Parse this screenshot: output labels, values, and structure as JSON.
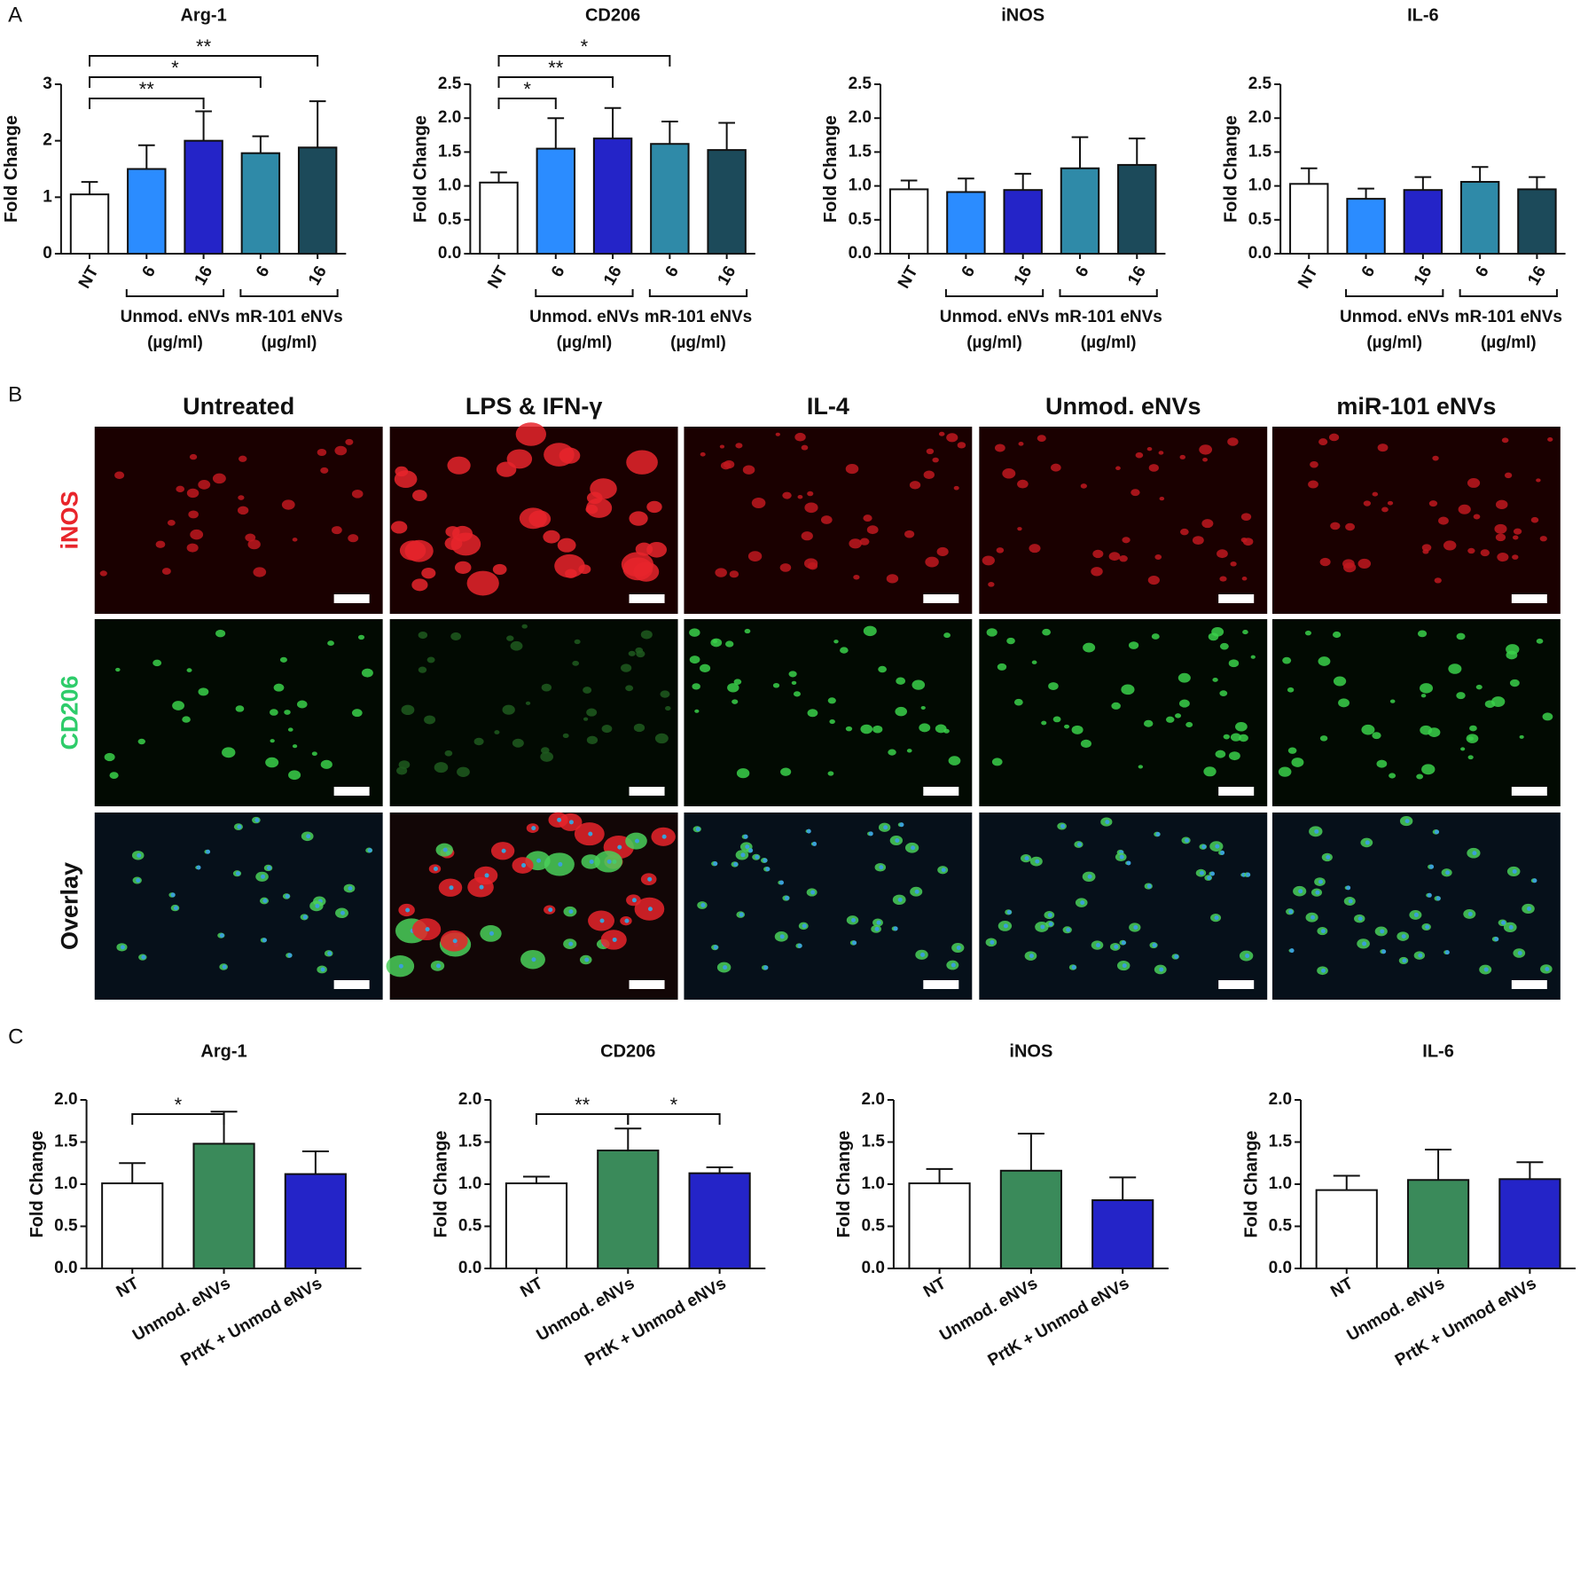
{
  "panel_labels": [
    "A",
    "B",
    "C"
  ],
  "chart_data": [
    {
      "type": "bar",
      "title": "Arg-1",
      "y_label": "Fold Change",
      "categories": [
        "NT",
        "6",
        "16",
        "6",
        "16"
      ],
      "values": [
        1.05,
        1.5,
        2.0,
        1.78,
        1.88
      ],
      "errors": [
        0.22,
        0.42,
        0.52,
        0.3,
        0.82
      ],
      "colors": [
        "#ffffff",
        "#2b8cff",
        "#2424c8",
        "#2f8aa8",
        "#1c4a5a"
      ],
      "ylim": [
        0,
        3
      ],
      "yticks": [
        0,
        1,
        2,
        3
      ],
      "significance": [
        {
          "from": 0,
          "to": 2,
          "label": "**"
        },
        {
          "from": 0,
          "to": 3,
          "label": "*"
        },
        {
          "from": 0,
          "to": 4,
          "label": "**"
        }
      ],
      "groups": [
        {
          "label": "Unmod. eNVs",
          "unit": "(µg/ml)",
          "from": 1,
          "to": 2
        },
        {
          "label": "mR-101 eNVs",
          "unit": "(µg/ml)",
          "from": 3,
          "to": 4
        }
      ]
    },
    {
      "type": "bar",
      "title": "CD206",
      "y_label": "Fold Change",
      "categories": [
        "NT",
        "6",
        "16",
        "6",
        "16"
      ],
      "values": [
        1.05,
        1.55,
        1.7,
        1.62,
        1.53
      ],
      "errors": [
        0.15,
        0.45,
        0.45,
        0.33,
        0.4
      ],
      "colors": [
        "#ffffff",
        "#2b8cff",
        "#2424c8",
        "#2f8aa8",
        "#1c4a5a"
      ],
      "ylim": [
        0,
        2.5
      ],
      "yticks": [
        {
          "value": 0,
          "label": "0.0"
        },
        0.5,
        {
          "value": 1,
          "label": "1.0"
        },
        1.5,
        {
          "value": 2,
          "label": "2.0"
        },
        2.5
      ],
      "significance": [
        {
          "from": 0,
          "to": 1,
          "label": "*"
        },
        {
          "from": 0,
          "to": 2,
          "label": "**"
        },
        {
          "from": 0,
          "to": 3,
          "label": "*"
        }
      ],
      "groups": [
        {
          "label": "Unmod. eNVs",
          "unit": "(µg/ml)",
          "from": 1,
          "to": 2
        },
        {
          "label": "mR-101 eNVs",
          "unit": "(µg/ml)",
          "from": 3,
          "to": 4
        }
      ]
    },
    {
      "type": "bar",
      "title": "iNOS",
      "y_label": "Fold Change",
      "categories": [
        "NT",
        "6",
        "16",
        "6",
        "16"
      ],
      "values": [
        0.95,
        0.91,
        0.94,
        1.26,
        1.31
      ],
      "errors": [
        0.13,
        0.2,
        0.24,
        0.46,
        0.39
      ],
      "colors": [
        "#ffffff",
        "#2b8cff",
        "#2424c8",
        "#2f8aa8",
        "#1c4a5a"
      ],
      "ylim": [
        0,
        2.5
      ],
      "yticks": [
        {
          "value": 0,
          "label": "0.0"
        },
        0.5,
        {
          "value": 1,
          "label": "1.0"
        },
        1.5,
        {
          "value": 2,
          "label": "2.0"
        },
        2.5
      ],
      "groups": [
        {
          "label": "Unmod. eNVs",
          "unit": "(µg/ml)",
          "from": 1,
          "to": 2
        },
        {
          "label": "mR-101 eNVs",
          "unit": "(µg/ml)",
          "from": 3,
          "to": 4
        }
      ]
    },
    {
      "type": "bar",
      "title": "IL-6",
      "y_label": "Fold Change",
      "categories": [
        "NT",
        "6",
        "16",
        "6",
        "16"
      ],
      "values": [
        1.03,
        0.81,
        0.94,
        1.06,
        0.95
      ],
      "errors": [
        0.23,
        0.15,
        0.19,
        0.22,
        0.18
      ],
      "colors": [
        "#ffffff",
        "#2b8cff",
        "#2424c8",
        "#2f8aa8",
        "#1c4a5a"
      ],
      "ylim": [
        0,
        2.5
      ],
      "yticks": [
        {
          "value": 0,
          "label": "0.0"
        },
        0.5,
        {
          "value": 1,
          "label": "1.0"
        },
        1.5,
        {
          "value": 2,
          "label": "2.0"
        },
        2.5
      ],
      "groups": [
        {
          "label": "Unmod. eNVs",
          "unit": "(µg/ml)",
          "from": 1,
          "to": 2
        },
        {
          "label": "mR-101 eNVs",
          "unit": "(µg/ml)",
          "from": 3,
          "to": 4
        }
      ]
    },
    {
      "type": "bar",
      "title": "Arg-1",
      "y_label": "Fold Change",
      "categories": [
        "NT",
        "Unmod. eNVs",
        "PrtK + Unmod eNVs"
      ],
      "values": [
        1.01,
        1.48,
        1.12
      ],
      "errors": [
        0.24,
        0.38,
        0.27
      ],
      "colors": [
        "#ffffff",
        "#3a8a5a",
        "#2424c8"
      ],
      "ylim": [
        0,
        2
      ],
      "yticks": [
        {
          "value": 0,
          "label": "0.0"
        },
        0.5,
        {
          "value": 1,
          "label": "1.0"
        },
        1.5,
        {
          "value": 2,
          "label": "2.0"
        }
      ],
      "significance": [
        {
          "from": 0,
          "to": 1,
          "label": "*"
        }
      ]
    },
    {
      "type": "bar",
      "title": "CD206",
      "y_label": "Fold Change",
      "categories": [
        "NT",
        "Unmod. eNVs",
        "PrtK + Unmod eNVs"
      ],
      "values": [
        1.01,
        1.4,
        1.13
      ],
      "errors": [
        0.08,
        0.26,
        0.07
      ],
      "colors": [
        "#ffffff",
        "#3a8a5a",
        "#2424c8"
      ],
      "ylim": [
        0,
        2
      ],
      "yticks": [
        {
          "value": 0,
          "label": "0.0"
        },
        0.5,
        {
          "value": 1,
          "label": "1.0"
        },
        1.5,
        {
          "value": 2,
          "label": "2.0"
        }
      ],
      "significance": [
        {
          "from": 0,
          "to": 1,
          "label": "**"
        },
        {
          "from": 1,
          "to": 2,
          "label": "*"
        }
      ]
    },
    {
      "type": "bar",
      "title": "iNOS",
      "y_label": "Fold Change",
      "categories": [
        "NT",
        "Unmod. eNVs",
        "PrtK + Unmod eNVs"
      ],
      "values": [
        1.01,
        1.16,
        0.81
      ],
      "errors": [
        0.17,
        0.44,
        0.27
      ],
      "colors": [
        "#ffffff",
        "#3a8a5a",
        "#2424c8"
      ],
      "ylim": [
        0,
        2
      ],
      "yticks": [
        {
          "value": 0,
          "label": "0.0"
        },
        0.5,
        {
          "value": 1,
          "label": "1.0"
        },
        1.5,
        {
          "value": 2,
          "label": "2.0"
        }
      ]
    },
    {
      "type": "bar",
      "title": "IL-6",
      "y_label": "Fold Change",
      "categories": [
        "NT",
        "Unmod. eNVs",
        "PrtK + Unmod eNVs"
      ],
      "values": [
        0.93,
        1.05,
        1.06
      ],
      "errors": [
        0.17,
        0.36,
        0.2
      ],
      "colors": [
        "#ffffff",
        "#3a8a5a",
        "#2424c8"
      ],
      "ylim": [
        0,
        2
      ],
      "yticks": [
        {
          "value": 0,
          "label": "0.0"
        },
        0.5,
        {
          "value": 1,
          "label": "1.0"
        },
        1.5,
        {
          "value": 2,
          "label": "2.0"
        }
      ]
    }
  ],
  "micrographs": {
    "columns": [
      "Untreated",
      "LPS & IFN-γ",
      "IL-4",
      "Unmod. eNVs",
      "miR-101 eNVs"
    ],
    "rows": [
      {
        "label": "iNOS",
        "color": "#e8252b"
      },
      {
        "label": "CD206",
        "color": "#2ecc6a"
      },
      {
        "label": "Overlay",
        "color": "#111111"
      }
    ]
  }
}
